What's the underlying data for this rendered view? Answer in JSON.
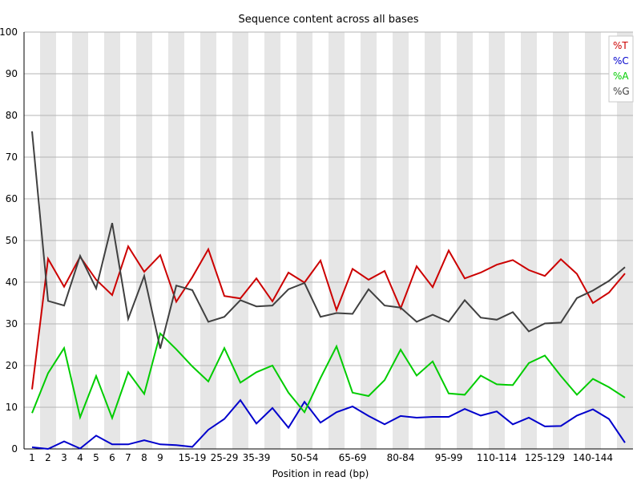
{
  "chart_data": {
    "type": "line",
    "title": "Sequence content across all bases",
    "xlabel": "Position in read (bp)",
    "ylabel": "",
    "ylim": [
      0,
      100
    ],
    "yticks": [
      0,
      10,
      20,
      30,
      40,
      50,
      60,
      70,
      80,
      90,
      100
    ],
    "grid": true,
    "legend_position": "top-right",
    "categories": [
      "1",
      "2",
      "3",
      "4",
      "5",
      "6",
      "7",
      "8",
      "9",
      "10-14",
      "15-19",
      "20-24",
      "25-29",
      "30-34",
      "35-39",
      "40-44",
      "45-49",
      "50-54",
      "55-59",
      "60-64",
      "65-69",
      "70-74",
      "75-79",
      "80-84",
      "85-89",
      "90-94",
      "95-99",
      "100-104",
      "105-109",
      "110-114",
      "115-119",
      "120-124",
      "125-129",
      "130-134",
      "135-139",
      "140-144",
      "145-149",
      "150-151"
    ],
    "tick_labels": [
      "1",
      "2",
      "3",
      "4",
      "5",
      "6",
      "7",
      "8",
      "9",
      "",
      "15-19",
      "",
      "25-29",
      "",
      "35-39",
      "",
      "",
      "50-54",
      "",
      "",
      "65-69",
      "",
      "",
      "80-84",
      "",
      "",
      "95-99",
      "",
      "",
      "110-114",
      "",
      "",
      "125-129",
      "",
      "",
      "140-144",
      "",
      ""
    ],
    "series": [
      {
        "name": "%T",
        "color": "#cc0000",
        "values": [
          14.3,
          45.6,
          38.9,
          46.1,
          40.6,
          36.9,
          48.6,
          42.5,
          46.5,
          35.3,
          41.2,
          47.9,
          36.7,
          36.1,
          40.9,
          35.4,
          42.3,
          39.9,
          45.2,
          33.3,
          43.2,
          40.6,
          42.7,
          33.7,
          43.8,
          38.8,
          47.6,
          40.9,
          42.3,
          44.2,
          45.3,
          42.9,
          41.5,
          45.5,
          42.0,
          35.0,
          37.5,
          42.1
        ]
      },
      {
        "name": "%C",
        "color": "#0000cc",
        "values": [
          0.4,
          0.0,
          1.8,
          0.1,
          3.2,
          1.1,
          1.1,
          2.1,
          1.1,
          0.9,
          0.5,
          4.6,
          7.2,
          11.7,
          6.1,
          9.8,
          5.1,
          11.3,
          6.3,
          8.8,
          10.2,
          7.9,
          5.9,
          7.9,
          7.5,
          7.7,
          7.7,
          9.6,
          8.0,
          9.0,
          5.9,
          7.5,
          5.4,
          5.5,
          8.0,
          9.5,
          7.2,
          1.5
        ]
      },
      {
        "name": "%A",
        "color": "#00cc00",
        "values": [
          8.6,
          18.2,
          24.2,
          7.6,
          17.5,
          7.4,
          18.4,
          13.2,
          27.7,
          23.9,
          19.8,
          16.2,
          24.2,
          15.9,
          18.4,
          20.0,
          13.5,
          8.8,
          17.0,
          24.6,
          13.5,
          12.7,
          16.5,
          23.8,
          17.6,
          21.0,
          13.3,
          13.0,
          17.6,
          15.5,
          15.3,
          20.6,
          22.4,
          17.5,
          13.0,
          16.8,
          14.8,
          12.3
        ]
      },
      {
        "name": "%G",
        "color": "#404040",
        "values": [
          76.2,
          35.5,
          34.4,
          46.3,
          38.5,
          54.2,
          31.2,
          41.5,
          24.1,
          39.2,
          38.1,
          30.5,
          31.7,
          35.7,
          34.2,
          34.4,
          38.3,
          39.8,
          31.7,
          32.6,
          32.4,
          38.3,
          34.4,
          33.9,
          30.5,
          32.2,
          30.5,
          35.7,
          31.5,
          31.0,
          32.8,
          28.2,
          30.1,
          30.3,
          36.2,
          38.0,
          40.3,
          43.6
        ]
      }
    ]
  }
}
